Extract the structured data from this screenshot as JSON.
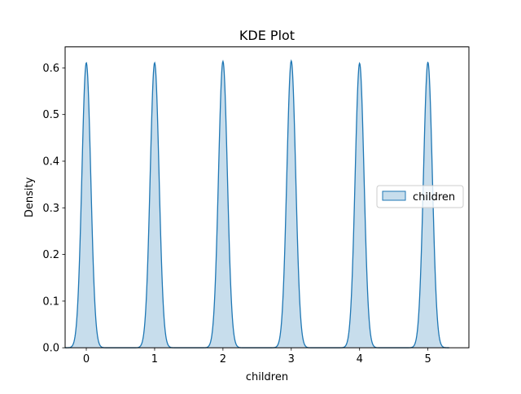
{
  "chart_data": {
    "type": "area",
    "title": "KDE Plot",
    "xlabel": "children",
    "ylabel": "Density",
    "xlim": [
      -0.31,
      5.6
    ],
    "ylim": [
      0,
      0.645
    ],
    "x_ticks": [
      "0",
      "1",
      "2",
      "3",
      "4",
      "5"
    ],
    "y_ticks": [
      "0.0",
      "0.1",
      "0.2",
      "0.3",
      "0.4",
      "0.5",
      "0.6"
    ],
    "grid": false,
    "legend_position": "center-right",
    "series": [
      {
        "name": "children",
        "color": "#1f77b4",
        "peaks": [
          {
            "x": 0,
            "density": 0.611
          },
          {
            "x": 1,
            "density": 0.611
          },
          {
            "x": 2,
            "density": 0.614
          },
          {
            "x": 3,
            "density": 0.615
          },
          {
            "x": 4,
            "density": 0.61
          },
          {
            "x": 5,
            "density": 0.612
          }
        ],
        "x_range": [
          -0.31,
          5.31
        ]
      }
    ]
  }
}
